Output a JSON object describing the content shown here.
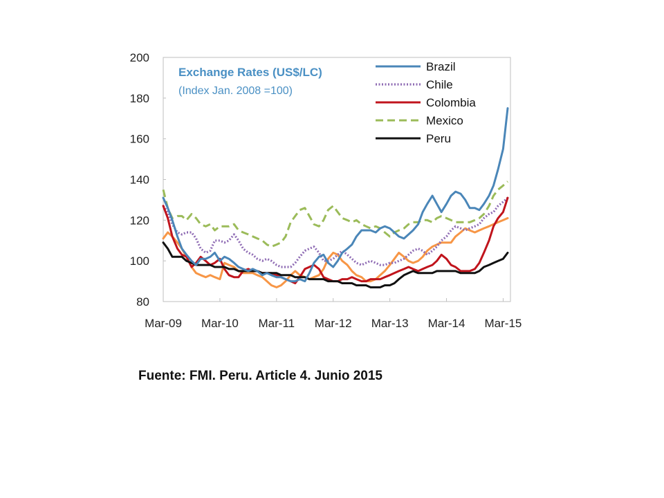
{
  "source_note": "Fuente: FMI. Peru. Article 4. Junio 2015",
  "chart_data": {
    "type": "line",
    "title": "Exchange Rates (US$/LC)",
    "subtitle": "(Index Jan. 2008 =100)",
    "xlabel": "",
    "ylabel": "",
    "ylim": [
      80,
      200
    ],
    "yticks": [
      80,
      100,
      120,
      140,
      160,
      180,
      200
    ],
    "x_ticks": [
      "Mar-09",
      "Mar-10",
      "Mar-11",
      "Mar-12",
      "Mar-13",
      "Mar-14",
      "Mar-15"
    ],
    "x_range": [
      2009.17,
      2015.25
    ],
    "legend_position": "top-right",
    "grid": false,
    "series": [
      {
        "name": "Brazil",
        "color": "#4a86b8",
        "dash": "solid",
        "x": [
          2009.17,
          2009.25,
          2009.33,
          2009.42,
          2009.5,
          2009.58,
          2009.67,
          2009.75,
          2009.83,
          2009.92,
          2010.0,
          2010.08,
          2010.17,
          2010.25,
          2010.33,
          2010.42,
          2010.5,
          2010.58,
          2010.67,
          2010.75,
          2010.83,
          2010.92,
          2011.0,
          2011.08,
          2011.17,
          2011.25,
          2011.33,
          2011.42,
          2011.5,
          2011.58,
          2011.67,
          2011.75,
          2011.83,
          2011.92,
          2012.0,
          2012.08,
          2012.17,
          2012.25,
          2012.33,
          2012.42,
          2012.5,
          2012.58,
          2012.67,
          2012.75,
          2012.83,
          2012.92,
          2013.0,
          2013.08,
          2013.17,
          2013.25,
          2013.33,
          2013.42,
          2013.5,
          2013.58,
          2013.67,
          2013.75,
          2013.83,
          2013.92,
          2014.0,
          2014.08,
          2014.17,
          2014.25,
          2014.33,
          2014.42,
          2014.5,
          2014.58,
          2014.67,
          2014.75,
          2014.83,
          2014.92,
          2015.0,
          2015.08,
          2015.17,
          2015.25
        ],
        "values": [
          131,
          126,
          120,
          112,
          106,
          103,
          100,
          98,
          101,
          101,
          102,
          104,
          100,
          102,
          101,
          99,
          97,
          96,
          95,
          96,
          95,
          93,
          94,
          93,
          92,
          92,
          91,
          90,
          90,
          91,
          90,
          94,
          99,
          102,
          103,
          99,
          97,
          100,
          104,
          106,
          108,
          112,
          115,
          115,
          115,
          114,
          116,
          117,
          116,
          114,
          112,
          111,
          113,
          115,
          118,
          124,
          128,
          132,
          128,
          124,
          128,
          132,
          134,
          133,
          130,
          126,
          126,
          125,
          128,
          132,
          137,
          145,
          155,
          175
        ]
      },
      {
        "name": "Chile",
        "color": "#8f6cb4",
        "dash": "dot",
        "x": [
          2009.17,
          2009.25,
          2009.33,
          2009.42,
          2009.5,
          2009.58,
          2009.67,
          2009.75,
          2009.83,
          2009.92,
          2010.0,
          2010.08,
          2010.17,
          2010.25,
          2010.33,
          2010.42,
          2010.5,
          2010.58,
          2010.67,
          2010.75,
          2010.83,
          2010.92,
          2011.0,
          2011.08,
          2011.17,
          2011.25,
          2011.33,
          2011.42,
          2011.5,
          2011.58,
          2011.67,
          2011.75,
          2011.83,
          2011.92,
          2012.0,
          2012.08,
          2012.17,
          2012.25,
          2012.33,
          2012.42,
          2012.5,
          2012.58,
          2012.67,
          2012.75,
          2012.83,
          2012.92,
          2013.0,
          2013.08,
          2013.17,
          2013.25,
          2013.33,
          2013.42,
          2013.5,
          2013.58,
          2013.67,
          2013.75,
          2013.83,
          2013.92,
          2014.0,
          2014.08,
          2014.17,
          2014.25,
          2014.33,
          2014.42,
          2014.5,
          2014.58,
          2014.67,
          2014.75,
          2014.83,
          2014.92,
          2015.0,
          2015.08,
          2015.17,
          2015.25
        ],
        "values": [
          127,
          124,
          118,
          114,
          113,
          114,
          114,
          111,
          106,
          104,
          105,
          110,
          110,
          109,
          110,
          113,
          110,
          106,
          104,
          103,
          101,
          100,
          101,
          100,
          98,
          97,
          97,
          97,
          99,
          102,
          105,
          106,
          107,
          104,
          100,
          100,
          101,
          103,
          105,
          103,
          101,
          99,
          98,
          99,
          100,
          99,
          98,
          98,
          99,
          99,
          100,
          101,
          103,
          105,
          106,
          105,
          103,
          105,
          107,
          110,
          112,
          115,
          117,
          116,
          115,
          116,
          117,
          118,
          121,
          123,
          124,
          127,
          129,
          131
        ]
      },
      {
        "name": "Colombia",
        "color": "#c0141c",
        "dash": "solid",
        "x": [
          2009.17,
          2009.25,
          2009.33,
          2009.42,
          2009.5,
          2009.58,
          2009.67,
          2009.75,
          2009.83,
          2009.92,
          2010.0,
          2010.08,
          2010.17,
          2010.25,
          2010.33,
          2010.42,
          2010.5,
          2010.58,
          2010.67,
          2010.75,
          2010.83,
          2010.92,
          2011.0,
          2011.08,
          2011.17,
          2011.25,
          2011.33,
          2011.42,
          2011.5,
          2011.58,
          2011.67,
          2011.75,
          2011.83,
          2011.92,
          2012.0,
          2012.08,
          2012.17,
          2012.25,
          2012.33,
          2012.42,
          2012.5,
          2012.58,
          2012.67,
          2012.75,
          2012.83,
          2012.92,
          2013.0,
          2013.08,
          2013.17,
          2013.25,
          2013.33,
          2013.42,
          2013.5,
          2013.58,
          2013.67,
          2013.75,
          2013.83,
          2013.92,
          2014.0,
          2014.08,
          2014.17,
          2014.25,
          2014.33,
          2014.42,
          2014.5,
          2014.58,
          2014.67,
          2014.75,
          2014.83,
          2014.92,
          2015.0,
          2015.08,
          2015.17,
          2015.25
        ],
        "values": [
          127,
          121,
          112,
          106,
          103,
          102,
          97,
          99,
          102,
          100,
          98,
          99,
          101,
          96,
          93,
          92,
          92,
          95,
          96,
          95,
          95,
          94,
          94,
          94,
          93,
          92,
          91,
          90,
          89,
          92,
          96,
          97,
          98,
          96,
          92,
          91,
          90,
          90,
          91,
          91,
          92,
          91,
          90,
          90,
          91,
          91,
          91,
          92,
          93,
          94,
          95,
          96,
          97,
          96,
          95,
          96,
          97,
          98,
          100,
          103,
          101,
          98,
          97,
          95,
          95,
          95,
          96,
          99,
          104,
          110,
          117,
          121,
          124,
          131
        ]
      },
      {
        "name": "Mexico",
        "color": "#9bbb59",
        "dash": "dash",
        "x": [
          2009.17,
          2009.25,
          2009.33,
          2009.42,
          2009.5,
          2009.58,
          2009.67,
          2009.75,
          2009.83,
          2009.92,
          2010.0,
          2010.08,
          2010.17,
          2010.25,
          2010.33,
          2010.42,
          2010.5,
          2010.58,
          2010.67,
          2010.75,
          2010.83,
          2010.92,
          2011.0,
          2011.08,
          2011.17,
          2011.25,
          2011.33,
          2011.42,
          2011.5,
          2011.58,
          2011.67,
          2011.75,
          2011.83,
          2011.92,
          2012.0,
          2012.08,
          2012.17,
          2012.25,
          2012.33,
          2012.42,
          2012.5,
          2012.58,
          2012.67,
          2012.75,
          2012.83,
          2012.92,
          2013.0,
          2013.08,
          2013.17,
          2013.25,
          2013.33,
          2013.42,
          2013.5,
          2013.58,
          2013.67,
          2013.75,
          2013.83,
          2013.92,
          2014.0,
          2014.08,
          2014.17,
          2014.25,
          2014.33,
          2014.42,
          2014.5,
          2014.58,
          2014.67,
          2014.75,
          2014.83,
          2014.92,
          2015.0,
          2015.08,
          2015.17,
          2015.25
        ],
        "values": [
          135,
          126,
          121,
          122,
          122,
          120,
          123,
          121,
          118,
          117,
          118,
          115,
          117,
          117,
          117,
          118,
          115,
          114,
          113,
          112,
          111,
          110,
          108,
          107,
          108,
          109,
          112,
          119,
          122,
          125,
          126,
          122,
          118,
          117,
          120,
          125,
          127,
          124,
          121,
          120,
          119,
          120,
          118,
          117,
          116,
          117,
          116,
          114,
          112,
          114,
          115,
          116,
          118,
          119,
          119,
          120,
          120,
          119,
          121,
          122,
          121,
          120,
          119,
          119,
          119,
          119,
          120,
          121,
          123,
          127,
          132,
          135,
          137,
          139
        ]
      },
      {
        "name": "Peru",
        "color": "#111111",
        "dash": "solid",
        "x": [
          2009.17,
          2009.25,
          2009.33,
          2009.42,
          2009.5,
          2009.58,
          2009.67,
          2009.75,
          2009.83,
          2009.92,
          2010.0,
          2010.08,
          2010.17,
          2010.25,
          2010.33,
          2010.42,
          2010.5,
          2010.58,
          2010.67,
          2010.75,
          2010.83,
          2010.92,
          2011.0,
          2011.08,
          2011.17,
          2011.25,
          2011.33,
          2011.42,
          2011.5,
          2011.58,
          2011.67,
          2011.75,
          2011.83,
          2011.92,
          2012.0,
          2012.08,
          2012.17,
          2012.25,
          2012.33,
          2012.42,
          2012.5,
          2012.58,
          2012.67,
          2012.75,
          2012.83,
          2012.92,
          2013.0,
          2013.08,
          2013.17,
          2013.25,
          2013.33,
          2013.42,
          2013.5,
          2013.58,
          2013.67,
          2013.75,
          2013.83,
          2013.92,
          2014.0,
          2014.08,
          2014.17,
          2014.25,
          2014.33,
          2014.42,
          2014.5,
          2014.58,
          2014.67,
          2014.75,
          2014.83,
          2014.92,
          2015.0,
          2015.08,
          2015.17,
          2015.25
        ],
        "values": [
          109,
          106,
          102,
          102,
          102,
          100,
          99,
          98,
          98,
          98,
          98,
          97,
          97,
          97,
          96,
          96,
          95,
          95,
          95,
          95,
          95,
          94,
          94,
          94,
          94,
          93,
          93,
          93,
          92,
          92,
          92,
          91,
          91,
          91,
          91,
          90,
          90,
          90,
          89,
          89,
          89,
          88,
          88,
          88,
          87,
          87,
          87,
          88,
          88,
          89,
          91,
          93,
          94,
          95,
          94,
          94,
          94,
          94,
          95,
          95,
          95,
          95,
          95,
          94,
          94,
          94,
          94,
          95,
          97,
          98,
          99,
          100,
          101,
          104
        ]
      },
      {
        "name": "",
        "color": "#f79646",
        "dash": "solid",
        "x": [
          2009.17,
          2009.25,
          2009.33,
          2009.42,
          2009.5,
          2009.58,
          2009.67,
          2009.75,
          2009.83,
          2009.92,
          2010.0,
          2010.08,
          2010.17,
          2010.25,
          2010.33,
          2010.42,
          2010.5,
          2010.58,
          2010.67,
          2010.75,
          2010.83,
          2010.92,
          2011.0,
          2011.08,
          2011.17,
          2011.25,
          2011.33,
          2011.42,
          2011.5,
          2011.58,
          2011.67,
          2011.75,
          2011.83,
          2011.92,
          2012.0,
          2012.08,
          2012.17,
          2012.25,
          2012.33,
          2012.42,
          2012.5,
          2012.58,
          2012.67,
          2012.75,
          2012.83,
          2012.92,
          2013.0,
          2013.08,
          2013.17,
          2013.25,
          2013.33,
          2013.42,
          2013.5,
          2013.58,
          2013.67,
          2013.75,
          2013.83,
          2013.92,
          2014.0,
          2014.08,
          2014.17,
          2014.25,
          2014.33,
          2014.42,
          2014.5,
          2014.58,
          2014.67,
          2014.75,
          2014.83,
          2014.92,
          2015.0,
          2015.08,
          2015.17,
          2015.25
        ],
        "values": [
          111,
          114,
          112,
          109,
          106,
          102,
          97,
          94,
          93,
          92,
          93,
          92,
          91,
          99,
          98,
          97,
          95,
          94,
          94,
          94,
          93,
          92,
          90,
          88,
          87,
          88,
          90,
          93,
          95,
          93,
          92,
          91,
          92,
          93,
          96,
          101,
          104,
          103,
          100,
          98,
          95,
          93,
          92,
          90,
          90,
          91,
          93,
          95,
          98,
          101,
          104,
          102,
          100,
          99,
          100,
          102,
          105,
          107,
          108,
          109,
          109,
          109,
          112,
          114,
          116,
          115,
          114,
          115,
          116,
          117,
          118,
          119,
          120,
          121
        ]
      }
    ]
  }
}
